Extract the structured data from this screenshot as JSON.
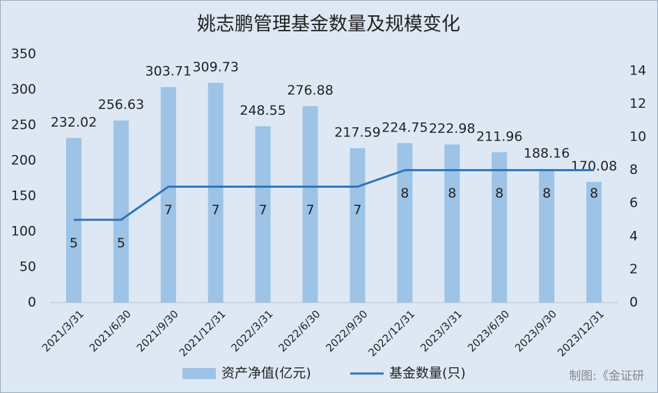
{
  "chart_data": {
    "type": "combo",
    "title": "姚志鹏管理基金数量及规模变化",
    "categories": [
      "2021/3/31",
      "2021/6/30",
      "2021/9/30",
      "2021/12/31",
      "2022/3/31",
      "2022/6/30",
      "2022/9/30",
      "2022/12/31",
      "2023/3/31",
      "2023/6/30",
      "2023/9/30",
      "2023/12/31"
    ],
    "series": [
      {
        "name": "资产净值(亿元)",
        "type": "bar",
        "color": "#9dc3e6",
        "values": [
          232.02,
          256.63,
          303.71,
          309.73,
          248.55,
          276.88,
          217.59,
          224.75,
          222.98,
          211.96,
          188.16,
          170.08
        ]
      },
      {
        "name": "基金数量(只)",
        "type": "line",
        "axis": "y2",
        "color": "#2e75b6",
        "values": [
          5,
          5,
          7,
          7,
          7,
          7,
          7,
          8,
          8,
          8,
          8,
          8
        ]
      }
    ],
    "ylim": [
      0,
      350
    ],
    "yticks": [
      0,
      50,
      100,
      150,
      200,
      250,
      300,
      350
    ],
    "y2lim": [
      0,
      15
    ],
    "y2ticks": [
      0,
      2,
      4,
      6,
      8,
      10,
      12,
      14
    ],
    "source": "制图:《金证研"
  }
}
